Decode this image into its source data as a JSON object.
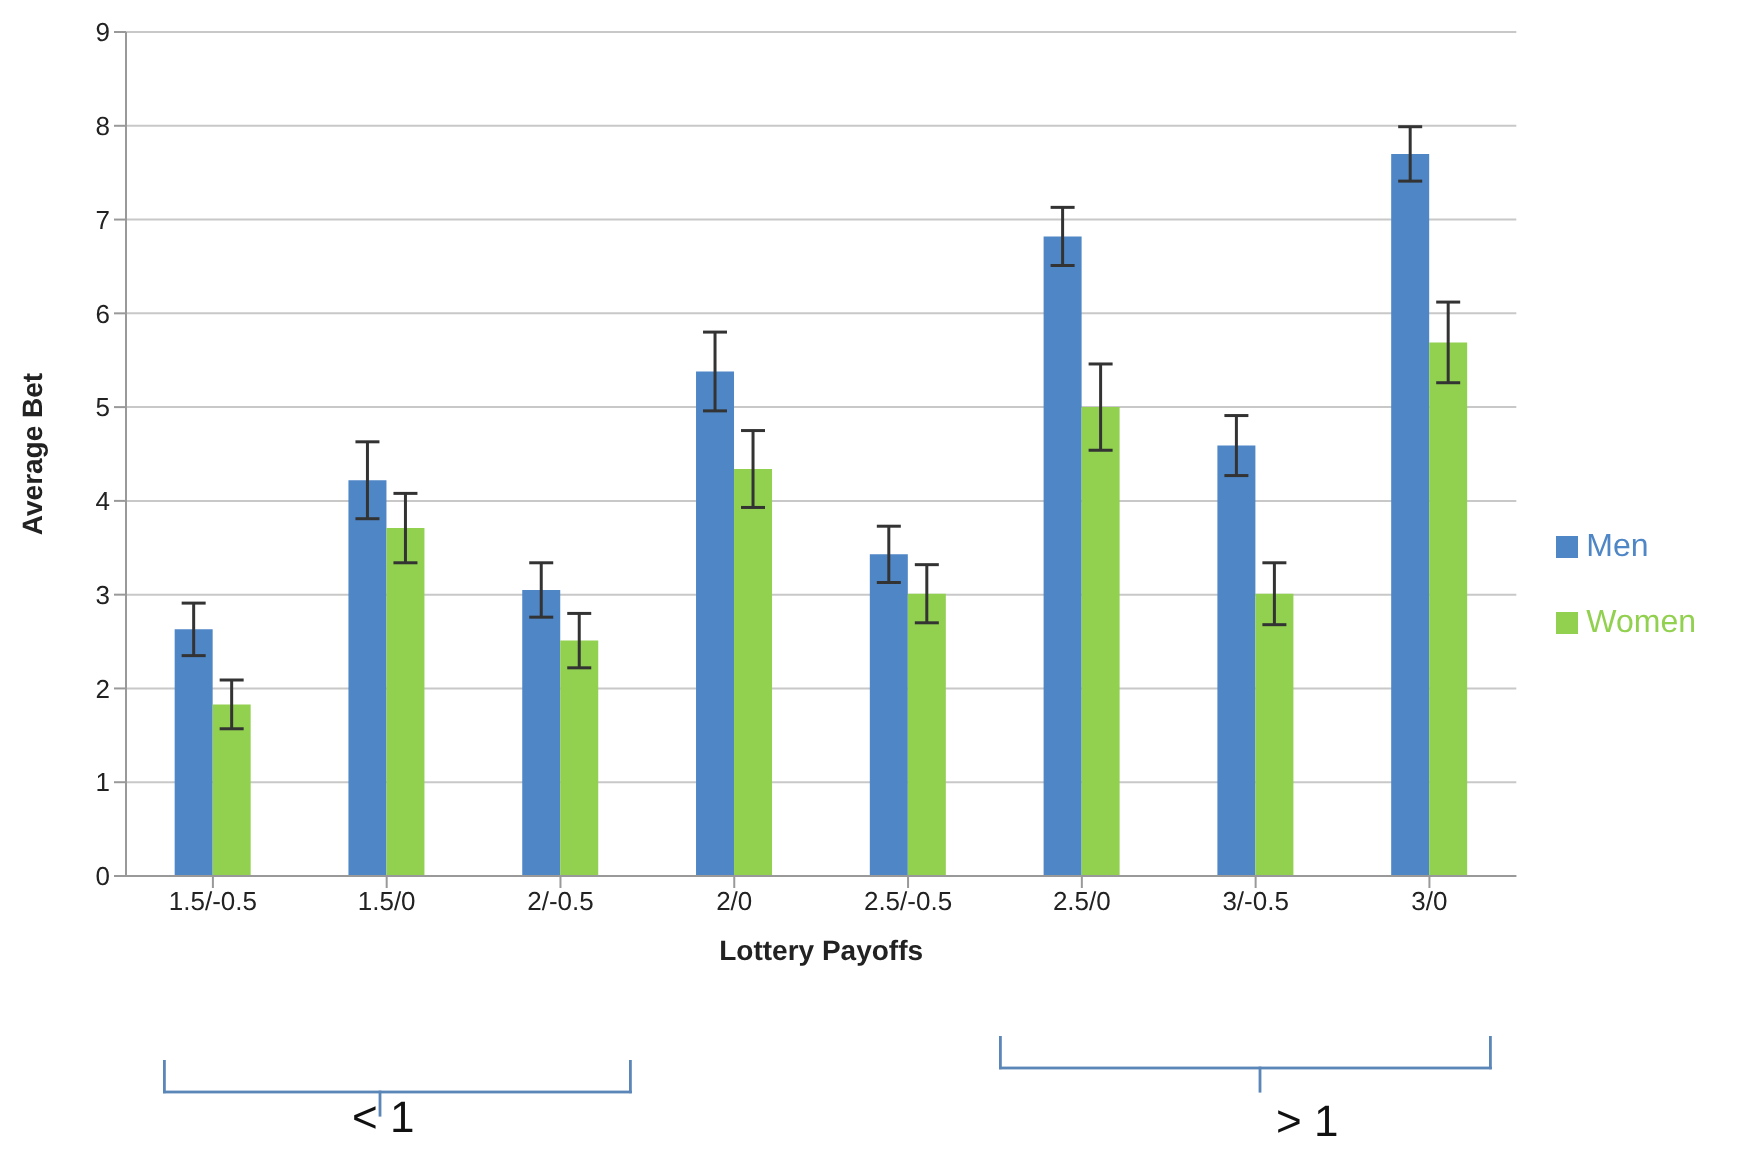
{
  "chart_data": {
    "type": "bar",
    "xlabel": "Lottery Payoffs",
    "ylabel": "Average Bet",
    "categories": [
      "1.5/-0.5",
      "1.5/0",
      "2/-0.5",
      "2/0",
      "2.5/-0.5",
      "2.5/0",
      "3/-0.5",
      "3/0"
    ],
    "series": [
      {
        "name": "Men",
        "color": "#4f86c6",
        "values": [
          2.63,
          4.22,
          3.05,
          5.38,
          3.43,
          6.82,
          4.59,
          7.7
        ],
        "errors": [
          0.28,
          0.41,
          0.29,
          0.42,
          0.3,
          0.31,
          0.32,
          0.29
        ]
      },
      {
        "name": "Women",
        "color": "#92d050",
        "values": [
          1.83,
          3.71,
          2.51,
          4.34,
          3.01,
          5.0,
          3.01,
          5.69
        ],
        "errors": [
          0.26,
          0.37,
          0.29,
          0.41,
          0.31,
          0.46,
          0.33,
          0.43
        ]
      }
    ],
    "ylim": [
      0,
      9
    ],
    "yticks": [
      0,
      1,
      2,
      3,
      4,
      5,
      6,
      7,
      8,
      9
    ],
    "grid": "y",
    "legend": "right",
    "annotations": [
      "< 1",
      "> 1"
    ]
  }
}
